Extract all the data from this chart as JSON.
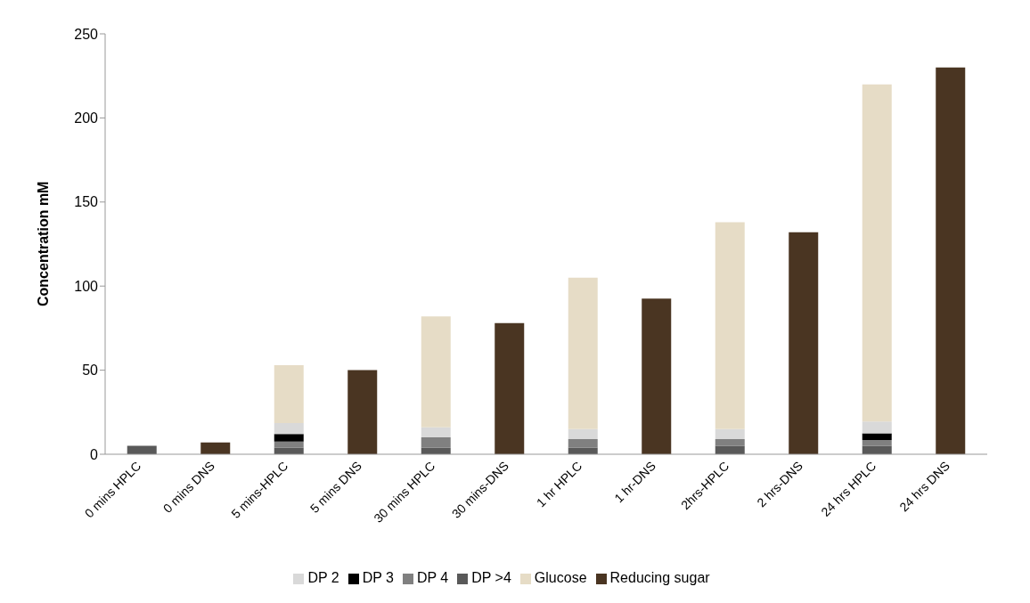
{
  "chart_data": {
    "type": "bar",
    "stacked": true,
    "ylabel": "Concentration mM",
    "categories": [
      "0 mins HPLC",
      "0 mins DNS",
      "5 mins-HPLC",
      "5 mins DNS",
      "30 mins HPLC",
      "30 mins-DNS",
      "1 hr HPLC",
      "1 hr-DNS",
      "2hrs-HPLC",
      "2 hrs-DNS",
      "24 hrs HPLC",
      "24 hrs DNS"
    ],
    "series": [
      {
        "name": "DP >4",
        "color": "#595959",
        "values": [
          5,
          null,
          4,
          null,
          4,
          null,
          4,
          null,
          5,
          null,
          5,
          null
        ]
      },
      {
        "name": "DP 4",
        "color": "#808080",
        "values": [
          null,
          null,
          3.5,
          null,
          6,
          null,
          5,
          null,
          4,
          null,
          3.5,
          null
        ]
      },
      {
        "name": "DP 3",
        "color": "#000000",
        "values": [
          null,
          null,
          4.5,
          null,
          null,
          null,
          null,
          null,
          null,
          null,
          4,
          null
        ]
      },
      {
        "name": "DP 2",
        "color": "#d9d9d9",
        "values": [
          null,
          null,
          6.5,
          null,
          6,
          null,
          6,
          null,
          6,
          null,
          7,
          null
        ]
      },
      {
        "name": "Glucose",
        "color": "#e6dcc6",
        "values": [
          null,
          null,
          34.5,
          null,
          66,
          null,
          90,
          null,
          123,
          null,
          200.5,
          null
        ]
      },
      {
        "name": "Reducing sugar",
        "color": "#4a3522",
        "values": [
          null,
          7,
          null,
          50,
          null,
          78,
          null,
          92.5,
          null,
          132,
          null,
          230
        ]
      }
    ],
    "ylim": [
      0,
      250
    ],
    "yticks": [
      0,
      50,
      100,
      150,
      200,
      250
    ],
    "grid": false,
    "legend": "bottom"
  }
}
